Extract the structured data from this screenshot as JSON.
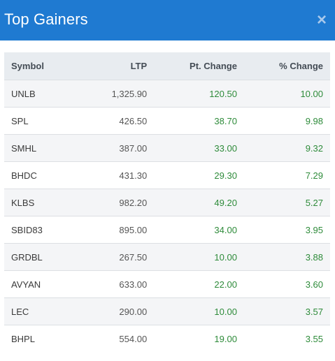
{
  "header": {
    "title": "Top Gainers",
    "close_icon": "×"
  },
  "table": {
    "columns": [
      "Symbol",
      "LTP",
      "Pt. Change",
      "% Change"
    ],
    "rows": [
      {
        "symbol": "UNLB",
        "ltp": "1,325.90",
        "pt_change": "120.50",
        "pct_change": "10.00"
      },
      {
        "symbol": "SPL",
        "ltp": "426.50",
        "pt_change": "38.70",
        "pct_change": "9.98"
      },
      {
        "symbol": "SMHL",
        "ltp": "387.00",
        "pt_change": "33.00",
        "pct_change": "9.32"
      },
      {
        "symbol": "BHDC",
        "ltp": "431.30",
        "pt_change": "29.30",
        "pct_change": "7.29"
      },
      {
        "symbol": "KLBS",
        "ltp": "982.20",
        "pt_change": "49.20",
        "pct_change": "5.27"
      },
      {
        "symbol": "SBID83",
        "ltp": "895.00",
        "pt_change": "34.00",
        "pct_change": "3.95"
      },
      {
        "symbol": "GRDBL",
        "ltp": "267.50",
        "pt_change": "10.00",
        "pct_change": "3.88"
      },
      {
        "symbol": "AVYAN",
        "ltp": "633.00",
        "pt_change": "22.00",
        "pct_change": "3.60"
      },
      {
        "symbol": "LEC",
        "ltp": "290.00",
        "pt_change": "10.00",
        "pct_change": "3.57"
      },
      {
        "symbol": "BHPL",
        "ltp": "554.00",
        "pt_change": "19.00",
        "pct_change": "3.55"
      }
    ]
  },
  "colors": {
    "header_bg": "#1f7ad1",
    "gain_text": "#2e8b3a",
    "table_header_bg": "#e8ecf0"
  }
}
